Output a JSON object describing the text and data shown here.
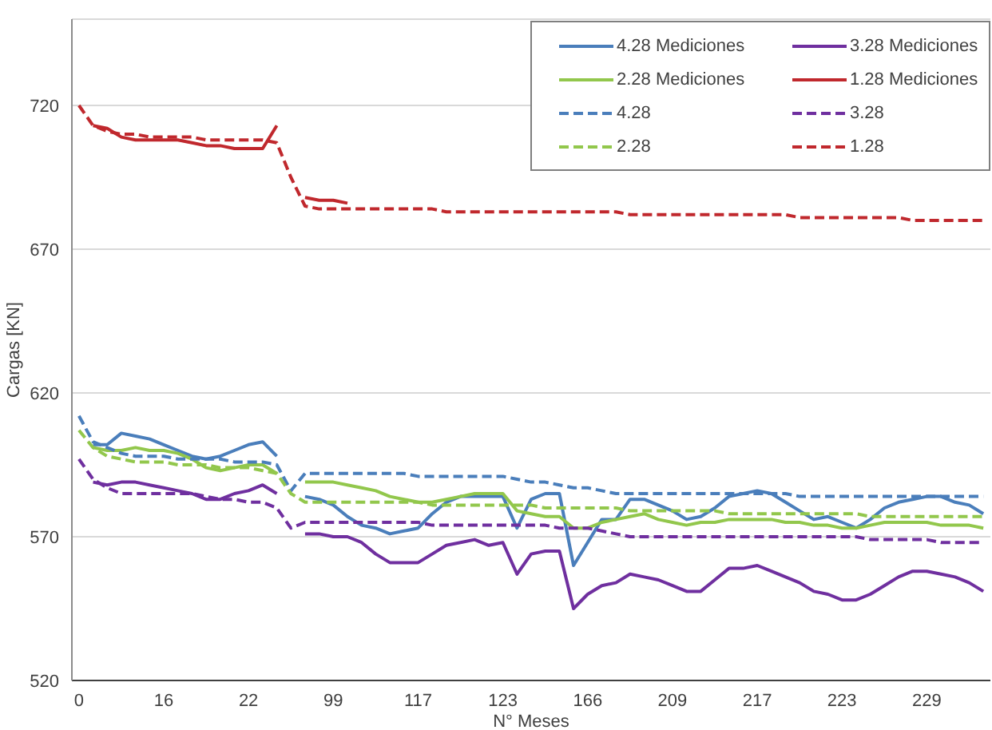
{
  "chart_data": {
    "type": "line",
    "ylabel": "Cargas [KN]",
    "xlabel": "N° Meses",
    "categories": [
      "0",
      null,
      null,
      null,
      null,
      null,
      "16",
      null,
      null,
      null,
      null,
      null,
      "22",
      null,
      null,
      null,
      null,
      null,
      "99",
      null,
      null,
      null,
      null,
      null,
      "117",
      null,
      null,
      null,
      null,
      null,
      "123",
      null,
      null,
      null,
      null,
      null,
      "166",
      null,
      null,
      null,
      null,
      null,
      "209",
      null,
      null,
      null,
      null,
      null,
      "217",
      null,
      null,
      null,
      null,
      null,
      "223",
      null,
      null,
      null,
      null,
      null,
      "229",
      null,
      null,
      null,
      null
    ],
    "ylim": [
      520,
      750
    ],
    "yticks": [
      520,
      570,
      620,
      670,
      720
    ],
    "grid": "y",
    "legend": "top right",
    "marker": "none",
    "series": [
      {
        "name": "4.28 Mediciones",
        "color": "#4a7ebb",
        "line_style": "solid",
        "values": [
          null,
          602,
          602,
          606,
          605,
          604,
          602,
          600,
          598,
          597,
          598,
          600,
          602,
          603,
          598,
          null,
          584,
          583,
          581,
          577,
          574,
          573,
          571,
          572,
          573,
          578,
          582,
          584,
          584,
          584,
          584,
          573,
          583,
          585,
          585,
          560,
          568,
          576,
          576,
          583,
          583,
          581,
          579,
          576,
          577,
          580,
          584,
          585,
          586,
          585,
          582,
          579,
          576,
          577,
          575,
          573,
          576,
          580,
          582,
          583,
          584,
          584,
          582,
          581,
          578
        ]
      },
      {
        "name": "3.28 Mediciones",
        "color": "#6f2f9f",
        "line_style": "solid",
        "values": [
          null,
          589,
          588,
          589,
          589,
          588,
          587,
          586,
          585,
          583,
          583,
          585,
          586,
          588,
          585,
          null,
          571,
          571,
          570,
          570,
          568,
          564,
          561,
          561,
          561,
          564,
          567,
          568,
          569,
          567,
          568,
          557,
          564,
          565,
          565,
          545,
          550,
          553,
          554,
          557,
          556,
          555,
          553,
          551,
          551,
          555,
          559,
          559,
          560,
          558,
          556,
          554,
          551,
          550,
          548,
          548,
          550,
          553,
          556,
          558,
          558,
          557,
          556,
          554,
          551
        ]
      },
      {
        "name": "2.28 Mediciones",
        "color": "#92c74c",
        "line_style": "solid",
        "values": [
          null,
          601,
          600,
          600,
          601,
          600,
          600,
          599,
          597,
          594,
          593,
          594,
          595,
          595,
          592,
          null,
          589,
          589,
          589,
          588,
          587,
          586,
          584,
          583,
          582,
          582,
          583,
          584,
          585,
          585,
          585,
          579,
          578,
          577,
          577,
          573,
          573,
          575,
          576,
          577,
          578,
          576,
          575,
          574,
          575,
          575,
          576,
          576,
          576,
          576,
          575,
          575,
          574,
          574,
          573,
          573,
          574,
          575,
          575,
          575,
          575,
          574,
          574,
          574,
          573
        ]
      },
      {
        "name": "1.28 Mediciones",
        "color": "#c0282d",
        "line_style": "solid",
        "values": [
          null,
          713,
          712,
          709,
          708,
          708,
          708,
          708,
          707,
          706,
          706,
          705,
          705,
          705,
          713,
          null,
          688,
          687,
          687,
          686,
          null,
          null,
          null,
          null,
          null,
          null,
          null,
          null,
          null,
          null,
          null,
          null,
          null,
          null,
          null,
          null,
          null,
          null,
          null,
          null,
          null,
          null,
          null,
          null,
          null,
          null,
          null,
          null,
          null,
          null,
          null,
          null,
          null,
          null,
          null,
          null,
          null,
          null,
          null,
          null,
          null,
          null,
          null,
          null,
          null
        ]
      },
      {
        "name": "4.28",
        "color": "#4a7ebb",
        "line_style": "dashed",
        "values": [
          612,
          603,
          601,
          599,
          598,
          598,
          598,
          597,
          597,
          597,
          597,
          596,
          596,
          596,
          595,
          586,
          592,
          592,
          592,
          592,
          592,
          592,
          592,
          592,
          591,
          591,
          591,
          591,
          591,
          591,
          591,
          590,
          589,
          589,
          588,
          587,
          587,
          586,
          585,
          585,
          585,
          585,
          585,
          585,
          585,
          585,
          585,
          585,
          585,
          585,
          585,
          584,
          584,
          584,
          584,
          584,
          584,
          584,
          584,
          584,
          584,
          584,
          584,
          584,
          584
        ]
      },
      {
        "name": "3.28",
        "color": "#6f2f9f",
        "line_style": "dashed",
        "values": [
          597,
          590,
          587,
          585,
          585,
          585,
          585,
          585,
          585,
          584,
          583,
          583,
          582,
          582,
          580,
          573,
          575,
          575,
          575,
          575,
          575,
          575,
          575,
          575,
          575,
          574,
          574,
          574,
          574,
          574,
          574,
          574,
          574,
          574,
          573,
          573,
          573,
          572,
          571,
          570,
          570,
          570,
          570,
          570,
          570,
          570,
          570,
          570,
          570,
          570,
          570,
          570,
          570,
          570,
          570,
          570,
          569,
          569,
          569,
          569,
          569,
          568,
          568,
          568,
          568
        ]
      },
      {
        "name": "2.28",
        "color": "#92c74c",
        "line_style": "dashed",
        "values": [
          607,
          601,
          598,
          597,
          596,
          596,
          596,
          595,
          595,
          595,
          594,
          594,
          594,
          593,
          592,
          585,
          582,
          582,
          582,
          582,
          582,
          582,
          582,
          582,
          582,
          581,
          581,
          581,
          581,
          581,
          581,
          581,
          581,
          580,
          580,
          580,
          580,
          580,
          580,
          579,
          579,
          579,
          579,
          579,
          579,
          579,
          578,
          578,
          578,
          578,
          578,
          578,
          578,
          578,
          578,
          578,
          577,
          577,
          577,
          577,
          577,
          577,
          577,
          577,
          577
        ]
      },
      {
        "name": "1.28",
        "color": "#c0282d",
        "line_style": "dashed",
        "values": [
          720,
          713,
          711,
          710,
          710,
          709,
          709,
          709,
          709,
          708,
          708,
          708,
          708,
          708,
          707,
          695,
          685,
          684,
          684,
          684,
          684,
          684,
          684,
          684,
          684,
          684,
          683,
          683,
          683,
          683,
          683,
          683,
          683,
          683,
          683,
          683,
          683,
          683,
          683,
          682,
          682,
          682,
          682,
          682,
          682,
          682,
          682,
          682,
          682,
          682,
          682,
          681,
          681,
          681,
          681,
          681,
          681,
          681,
          681,
          680,
          680,
          680,
          680,
          680,
          680
        ]
      }
    ]
  }
}
